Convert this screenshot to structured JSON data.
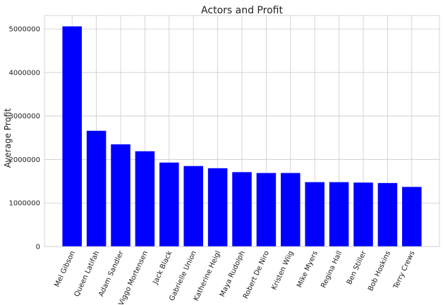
{
  "chart_data": {
    "type": "bar",
    "title": "Actors and Profit",
    "xlabel": "",
    "ylabel": "Average Profit",
    "categories": [
      "Mel Gibson",
      "Queen Latifah",
      "Adam Sandler",
      "Viggo Mortensen",
      "Jack Black",
      "Gabrielle Union",
      "Katherine Heigl",
      "Maya Rudolph",
      "Robert De Niro",
      "Kristen Wiig",
      "Mike Myers",
      "Regina Hall",
      "Ben Stiller",
      "Bob Hoskins",
      "Terry Crews"
    ],
    "values": [
      5060000,
      2660000,
      2350000,
      2190000,
      1930000,
      1850000,
      1800000,
      1710000,
      1690000,
      1690000,
      1480000,
      1480000,
      1470000,
      1460000,
      1370000
    ],
    "yticks": [
      0,
      1000000,
      2000000,
      3000000,
      4000000,
      5000000
    ],
    "ylim": [
      0,
      5310000
    ],
    "grid": true,
    "bar_color": "#0000ff",
    "tick_label_rotation": -65
  }
}
